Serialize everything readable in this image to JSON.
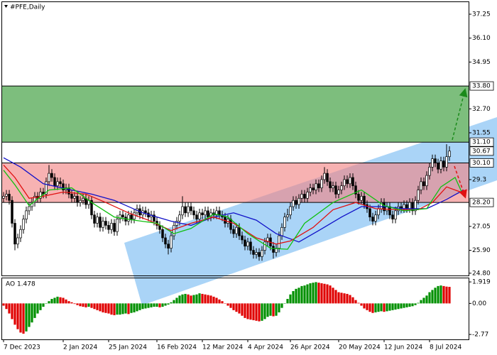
{
  "chart_data": {
    "type": "candlestick",
    "title": "#PFE,Daily",
    "xlim": [
      -0.5,
      163.75
    ],
    "xticks": [
      {
        "value": 0,
        "label": "7 Dec 2023"
      },
      {
        "value": 21,
        "label": "2 Jan 2024"
      },
      {
        "value": 37,
        "label": "25 Jan 2024"
      },
      {
        "value": 54,
        "label": "16 Feb 2024"
      },
      {
        "value": 70,
        "label": "12 Mar 2024"
      },
      {
        "value": 86,
        "label": "4 Apr 2024"
      },
      {
        "value": 101,
        "label": "26 Apr 2024"
      },
      {
        "value": 118,
        "label": "20 May 2024"
      },
      {
        "value": 134,
        "label": "12 Jun 2024"
      },
      {
        "value": 150,
        "label": "8 Jul 2024"
      }
    ],
    "ylim": [
      24.69,
      37.83
    ],
    "yticks": [
      37.25,
      {
        "value": 36.1,
        "label": "36.10"
      },
      34.95,
      {
        "value": 32.7,
        "label": "32.70"
      },
      31.55,
      29.3,
      27.05,
      {
        "value": 25.9,
        "label": "25.90"
      },
      {
        "value": 24.8,
        "label": "24.80"
      }
    ],
    "grid": false,
    "levels": [
      {
        "value": 33.8,
        "label": "33.80"
      },
      {
        "value": 31.1,
        "label": "31.10"
      },
      30.67,
      {
        "value": 30.1,
        "label": "30.10"
      },
      {
        "value": 28.2,
        "label": "28.20"
      }
    ],
    "band_colors": [
      "#7dbe7d",
      "rgba(242,130,130,0.62)"
    ],
    "up_color": "#ffffff",
    "down_color": "#000000",
    "open": [
      28.4,
      28.5,
      28.6,
      28.3,
      27.2,
      26.2,
      26.5,
      26.9,
      27.4,
      27.8,
      28.0,
      28.2,
      28.5,
      28.4,
      28.7,
      28.6,
      29.2,
      29.6,
      29.4,
      29.0,
      29.2,
      29.1,
      28.8,
      28.9,
      28.6,
      28.4,
      28.5,
      28.2,
      28.3,
      28.4,
      28.1,
      28.3,
      27.6,
      27.2,
      27.5,
      27.0,
      27.3,
      27.1,
      26.9,
      27.2,
      26.8,
      27.4,
      27.6,
      27.5,
      27.3,
      27.6,
      27.4,
      27.7,
      27.9,
      27.6,
      27.8,
      27.7,
      27.5,
      27.6,
      27.3,
      27.1,
      26.9,
      26.5,
      26.2,
      26.0,
      26.6,
      27.1,
      27.3,
      27.6,
      28.0,
      27.7,
      28.0,
      27.8,
      27.6,
      27.4,
      27.7,
      27.6,
      27.8,
      27.5,
      27.7,
      27.6,
      27.8,
      27.6,
      27.5,
      27.2,
      27.4,
      26.9,
      26.7,
      27.0,
      26.6,
      26.4,
      26.1,
      26.3,
      25.9,
      25.7,
      25.8,
      25.6,
      25.9,
      26.3,
      26.5,
      26.1,
      25.8,
      26.0,
      26.6,
      27.0,
      27.5,
      27.6,
      28.0,
      28.3,
      28.1,
      28.4,
      28.6,
      28.4,
      28.7,
      28.9,
      28.8,
      29.1,
      28.9,
      29.3,
      29.6,
      29.2,
      28.9,
      29.0,
      28.6,
      28.8,
      29.0,
      29.3,
      29.1,
      29.4,
      29.0,
      28.6,
      28.3,
      28.5,
      28.1,
      27.9,
      27.5,
      27.3,
      27.6,
      27.9,
      28.2,
      27.8,
      28.0,
      27.6,
      27.4,
      27.8,
      28.0,
      27.9,
      28.1,
      27.9,
      28.2,
      27.8,
      28.3,
      28.8,
      29.2,
      29.0,
      29.5,
      29.9,
      30.3,
      30.1,
      29.8,
      30.2,
      29.9,
      30.4
    ],
    "high": [
      28.7,
      28.8,
      28.8,
      28.5,
      27.4,
      26.7,
      27.1,
      27.6,
      28.0,
      28.2,
      28.4,
      28.7,
      28.7,
      28.9,
      28.9,
      29.4,
      30.0,
      29.8,
      29.6,
      29.4,
      29.4,
      29.3,
      29.1,
      29.1,
      28.8,
      28.7,
      28.7,
      28.5,
      28.6,
      28.6,
      28.5,
      28.5,
      27.8,
      27.7,
      27.7,
      27.5,
      27.5,
      27.3,
      27.4,
      27.4,
      27.6,
      27.8,
      27.8,
      27.7,
      27.8,
      27.8,
      27.9,
      28.1,
      28.1,
      28.0,
      28.0,
      27.9,
      27.8,
      27.8,
      27.5,
      27.3,
      27.1,
      26.7,
      26.4,
      26.8,
      27.3,
      27.5,
      27.8,
      28.5,
      28.2,
      28.2,
      28.2,
      28.0,
      27.8,
      27.9,
      27.9,
      28.0,
      28.0,
      27.9,
      27.9,
      28.0,
      28.0,
      27.8,
      27.7,
      27.6,
      27.6,
      27.1,
      27.2,
      27.2,
      26.8,
      26.6,
      26.5,
      26.5,
      26.1,
      26.0,
      26.0,
      26.1,
      26.5,
      26.7,
      26.7,
      26.3,
      26.2,
      26.8,
      27.2,
      27.7,
      27.9,
      28.2,
      28.5,
      28.5,
      28.6,
      28.8,
      28.8,
      28.9,
      29.1,
      29.1,
      29.3,
      29.3,
      29.5,
      29.9,
      29.8,
      29.4,
      29.2,
      29.2,
      29.0,
      29.2,
      29.5,
      29.5,
      29.6,
      29.6,
      29.2,
      28.8,
      28.7,
      28.7,
      28.3,
      28.1,
      27.7,
      27.8,
      28.1,
      28.4,
      28.4,
      28.2,
      28.2,
      27.8,
      28.0,
      28.2,
      28.2,
      28.3,
      28.3,
      28.4,
      28.4,
      28.5,
      29.0,
      29.4,
      29.4,
      29.7,
      30.1,
      30.5,
      30.5,
      30.3,
      30.4,
      30.4,
      31.0,
      30.9
    ],
    "low": [
      28.2,
      28.3,
      28.1,
      27.0,
      25.9,
      26.0,
      26.3,
      26.7,
      27.2,
      27.6,
      27.8,
      28.0,
      28.2,
      28.2,
      28.4,
      28.4,
      29.0,
      29.2,
      28.8,
      28.8,
      28.9,
      28.6,
      28.6,
      28.4,
      28.2,
      28.2,
      28.0,
      28.0,
      28.1,
      27.9,
      27.9,
      27.4,
      27.0,
      27.0,
      26.8,
      26.8,
      26.9,
      26.7,
      26.7,
      26.6,
      26.6,
      27.2,
      27.3,
      27.1,
      27.1,
      27.2,
      27.2,
      27.5,
      27.4,
      27.4,
      27.5,
      27.3,
      27.3,
      27.1,
      26.9,
      26.7,
      26.3,
      26.0,
      25.7,
      25.8,
      26.4,
      26.9,
      27.1,
      27.4,
      27.5,
      27.5,
      27.6,
      27.4,
      27.2,
      27.2,
      27.4,
      27.4,
      27.3,
      27.3,
      27.4,
      27.4,
      27.4,
      27.3,
      27.0,
      27.0,
      26.7,
      26.5,
      26.5,
      26.4,
      26.2,
      25.9,
      25.9,
      25.7,
      25.5,
      25.5,
      25.4,
      25.4,
      25.7,
      26.1,
      25.9,
      25.5,
      25.6,
      25.8,
      26.4,
      26.8,
      27.3,
      27.4,
      27.8,
      27.9,
      27.9,
      28.2,
      28.2,
      28.2,
      28.5,
      28.6,
      28.6,
      28.7,
      28.7,
      29.1,
      29.0,
      28.7,
      28.7,
      28.4,
      28.4,
      28.6,
      28.8,
      28.9,
      28.9,
      28.8,
      28.4,
      28.1,
      28.1,
      27.9,
      27.7,
      27.3,
      27.1,
      27.1,
      27.4,
      27.7,
      27.6,
      27.6,
      27.4,
      27.2,
      27.2,
      27.6,
      27.7,
      27.7,
      27.7,
      27.7,
      27.6,
      27.6,
      28.1,
      28.6,
      28.8,
      28.8,
      29.3,
      29.7,
      29.9,
      29.6,
      29.6,
      29.7,
      29.7,
      30.2
    ],
    "close": [
      28.5,
      28.6,
      28.3,
      27.2,
      26.2,
      26.5,
      26.9,
      27.4,
      27.8,
      28.0,
      28.2,
      28.5,
      28.4,
      28.7,
      28.6,
      29.2,
      29.6,
      29.4,
      29.0,
      29.2,
      29.1,
      28.8,
      28.9,
      28.6,
      28.4,
      28.5,
      28.2,
      28.3,
      28.4,
      28.1,
      28.3,
      27.6,
      27.2,
      27.5,
      27.0,
      27.3,
      27.1,
      26.9,
      27.2,
      26.8,
      27.4,
      27.6,
      27.5,
      27.3,
      27.6,
      27.4,
      27.7,
      27.9,
      27.6,
      27.8,
      27.7,
      27.5,
      27.6,
      27.3,
      27.1,
      26.9,
      26.5,
      26.2,
      26.0,
      26.6,
      27.1,
      27.3,
      27.6,
      28.0,
      27.7,
      28.0,
      27.8,
      27.6,
      27.4,
      27.7,
      27.6,
      27.8,
      27.5,
      27.7,
      27.6,
      27.8,
      27.6,
      27.5,
      27.2,
      27.4,
      26.9,
      26.7,
      27.0,
      26.6,
      26.4,
      26.1,
      26.3,
      25.9,
      25.7,
      25.8,
      25.6,
      25.9,
      26.3,
      26.5,
      26.1,
      25.8,
      26.0,
      26.6,
      27.0,
      27.5,
      27.6,
      28.0,
      28.3,
      28.1,
      28.4,
      28.6,
      28.4,
      28.7,
      28.9,
      28.8,
      29.1,
      28.9,
      29.3,
      29.6,
      29.2,
      28.9,
      29.0,
      28.6,
      28.8,
      29.0,
      29.3,
      29.1,
      29.4,
      29.0,
      28.6,
      28.3,
      28.5,
      28.1,
      27.9,
      27.5,
      27.3,
      27.6,
      27.9,
      28.2,
      27.8,
      28.0,
      27.6,
      27.4,
      27.8,
      28.0,
      27.9,
      28.1,
      27.9,
      28.2,
      27.8,
      28.3,
      28.8,
      29.2,
      29.0,
      29.5,
      29.9,
      30.3,
      30.1,
      29.8,
      30.2,
      29.9,
      30.4,
      30.67
    ],
    "lines": [
      {
        "color": "#1010c8",
        "x": [
          0,
          6,
          14,
          24,
          31,
          39,
          49,
          59,
          66,
          74,
          81,
          89,
          96,
          104,
          111,
          119,
          126,
          134,
          141,
          149,
          156,
          162
        ],
        "values": [
          30.35,
          29.9,
          29.1,
          28.8,
          28.6,
          28.3,
          27.7,
          27.3,
          27.1,
          27.5,
          27.7,
          27.35,
          26.7,
          26.3,
          26.85,
          27.5,
          28.0,
          28.0,
          27.9,
          27.9,
          28.35,
          28.8
        ]
      },
      {
        "color": "#e01010",
        "x": [
          0,
          4,
          9,
          14,
          21,
          29,
          36,
          44,
          51,
          59,
          66,
          74,
          81,
          89,
          96,
          101,
          109,
          116,
          124,
          131,
          139,
          146,
          151,
          156,
          162
        ],
        "values": [
          30.0,
          29.4,
          28.4,
          28.5,
          28.7,
          28.6,
          28.2,
          27.7,
          27.35,
          26.85,
          27.2,
          27.5,
          27.2,
          26.5,
          26.2,
          26.35,
          27.0,
          27.85,
          28.2,
          27.9,
          27.85,
          27.85,
          28.2,
          28.95,
          28.65
        ]
      },
      {
        "color": "#10c010",
        "x": [
          0,
          4,
          9,
          16,
          24,
          31,
          39,
          46,
          54,
          60,
          66,
          74,
          79,
          86,
          94,
          100,
          106,
          116,
          126,
          134,
          141,
          149,
          154,
          159,
          162
        ],
        "values": [
          29.75,
          29.05,
          28.05,
          28.8,
          28.9,
          28.2,
          27.5,
          27.35,
          27.2,
          26.7,
          26.95,
          27.65,
          27.5,
          26.7,
          26.0,
          25.95,
          27.2,
          28.2,
          28.8,
          28.05,
          27.8,
          27.9,
          28.95,
          29.4,
          28.5
        ]
      }
    ],
    "oscillator": {
      "type": "bar",
      "title": "AO 1.478",
      "ylim": [
        -3.21,
        2.24
      ],
      "yticks": [
        1.919,
        {
          "value": 0,
          "label": "0.00"
        },
        -2.77
      ],
      "up_color": "#009000",
      "down_color": "#e00000",
      "values": [
        -0.2,
        -0.5,
        -0.9,
        -1.4,
        -1.9,
        -2.3,
        -2.6,
        -2.7,
        -2.5,
        -2.1,
        -1.7,
        -1.3,
        -0.9,
        -0.6,
        -0.3,
        0.0,
        0.2,
        0.4,
        0.5,
        0.6,
        0.55,
        0.5,
        0.35,
        0.2,
        0.1,
        -0.05,
        -0.15,
        -0.25,
        -0.3,
        -0.35,
        -0.3,
        -0.4,
        -0.5,
        -0.6,
        -0.7,
        -0.8,
        -0.85,
        -0.9,
        -1.0,
        -1.05,
        -1.0,
        -1.0,
        -0.95,
        -0.9,
        -0.95,
        -0.85,
        -0.8,
        -0.7,
        -0.6,
        -0.5,
        -0.45,
        -0.4,
        -0.35,
        -0.3,
        -0.3,
        -0.35,
        -0.3,
        -0.2,
        -0.1,
        0.1,
        0.3,
        0.5,
        0.7,
        0.8,
        0.85,
        0.8,
        0.7,
        0.75,
        0.8,
        0.9,
        0.85,
        0.8,
        0.75,
        0.7,
        0.6,
        0.5,
        0.35,
        0.2,
        0.0,
        -0.2,
        -0.4,
        -0.6,
        -0.75,
        -0.9,
        -1.1,
        -1.3,
        -1.4,
        -1.45,
        -1.5,
        -1.55,
        -1.6,
        -1.55,
        -1.4,
        -1.2,
        -1.1,
        -1.15,
        -1.1,
        -0.8,
        -0.4,
        0.0,
        0.4,
        0.8,
        1.1,
        1.3,
        1.4,
        1.55,
        1.6,
        1.7,
        1.8,
        1.85,
        1.9,
        1.85,
        1.8,
        1.75,
        1.7,
        1.6,
        1.4,
        1.2,
        1.0,
        0.95,
        0.9,
        0.85,
        0.75,
        0.55,
        0.3,
        0.05,
        -0.2,
        -0.45,
        -0.6,
        -0.75,
        -0.85,
        -0.8,
        -0.75,
        -0.7,
        -0.75,
        -0.7,
        -0.65,
        -0.6,
        -0.55,
        -0.5,
        -0.45,
        -0.4,
        -0.35,
        -0.3,
        -0.25,
        -0.15,
        0.05,
        0.3,
        0.5,
        0.7,
        1.0,
        1.2,
        1.4,
        1.55,
        1.6,
        1.55,
        1.5,
        1.478
      ]
    }
  }
}
